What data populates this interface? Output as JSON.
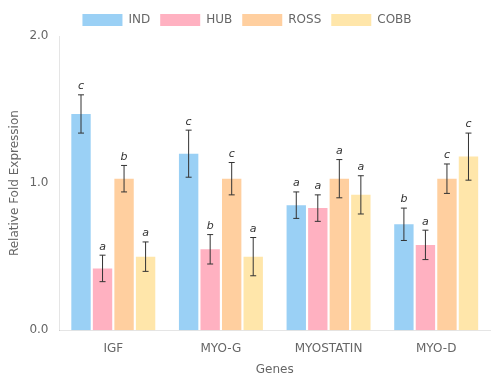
{
  "chart_data": {
    "type": "bar",
    "xlabel": "Genes",
    "ylabel": "Relative Fold Expression",
    "categories": [
      "IGF",
      "MYO-G",
      "MYOSTATIN",
      "MYO-D"
    ],
    "series": [
      {
        "name": "IND",
        "values": [
          1.47,
          1.2,
          0.85,
          0.72
        ],
        "errors": [
          0.13,
          0.16,
          0.09,
          0.11
        ],
        "annotations": [
          "c",
          "c",
          "a",
          "b"
        ]
      },
      {
        "name": "HUB",
        "values": [
          0.42,
          0.55,
          0.83,
          0.58
        ],
        "errors": [
          0.09,
          0.1,
          0.09,
          0.1
        ],
        "annotations": [
          "a",
          "b",
          "a",
          "a"
        ]
      },
      {
        "name": "ROSS",
        "values": [
          1.03,
          1.03,
          1.03,
          1.03
        ],
        "errors": [
          0.09,
          0.11,
          0.13,
          0.1
        ],
        "annotations": [
          "b",
          "c",
          "a",
          "c"
        ]
      },
      {
        "name": "COBB",
        "values": [
          0.5,
          0.5,
          0.92,
          1.18
        ],
        "errors": [
          0.1,
          0.13,
          0.13,
          0.16
        ],
        "annotations": [
          "a",
          "a",
          "a",
          "c"
        ]
      }
    ],
    "ylim": [
      0,
      2.0
    ],
    "yticks": [
      {
        "value": 0,
        "label": "0.0"
      },
      {
        "value": 1.0,
        "label": "1.0"
      },
      {
        "value": 2.0,
        "label": "2.0"
      }
    ],
    "grid": false,
    "legend": "top"
  }
}
